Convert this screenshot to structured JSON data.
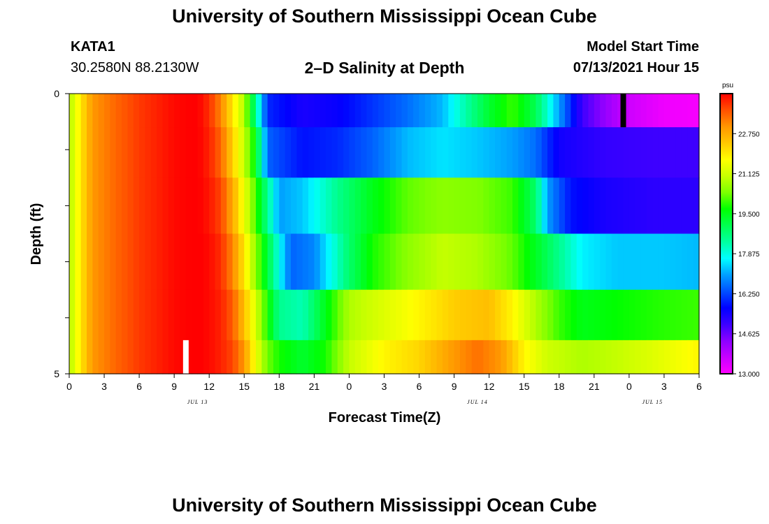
{
  "header": {
    "title": "University of Southern Mississippi Ocean Cube",
    "station": "KATA1",
    "coords": "30.2580N  88.2130W",
    "subtitle": "2–D Salinity at Depth",
    "model_start_label": "Model Start Time",
    "model_start_value": "07/13/2021 Hour 15"
  },
  "footer": {
    "title": "University of Southern Mississippi Ocean Cube"
  },
  "chart_data": {
    "type": "heatmap",
    "xlabel": "Forecast Time(Z)",
    "ylabel": "Depth (ft)",
    "x_tick_labels": [
      "0",
      "3",
      "6",
      "9",
      "12",
      "15",
      "18",
      "21",
      "0",
      "3",
      "6",
      "9",
      "12",
      "15",
      "18",
      "21",
      "0",
      "3",
      "6"
    ],
    "x_range_hours": [
      0,
      54
    ],
    "date_labels": [
      {
        "text": "JUL 13",
        "hour": 11
      },
      {
        "text": "JUL 14",
        "hour": 35
      },
      {
        "text": "JUL 15",
        "hour": 50
      }
    ],
    "y_tick_labels": [
      "0",
      "5"
    ],
    "y_range": [
      0,
      5
    ],
    "y_minor_ticks": [
      1,
      2,
      3,
      4
    ],
    "colorbar": {
      "unit": "psu",
      "labels": [
        "22.750",
        "21.125",
        "19.500",
        "17.875",
        "16.250",
        "14.625",
        "13.000"
      ],
      "min": 13.0,
      "max": 24.375,
      "colors": [
        "#ff00ff",
        "#c800ff",
        "#8c00ff",
        "#3c00ff",
        "#0000ff",
        "#0050ff",
        "#00a0ff",
        "#00ffff",
        "#00ffa0",
        "#00ff50",
        "#00ff00",
        "#7cff00",
        "#c8ff00",
        "#ffff00",
        "#ffc800",
        "#ff9600",
        "#ff5000",
        "#ff0000"
      ]
    },
    "row_depths": [
      0.25,
      1.0,
      2.0,
      3.0,
      4.0,
      4.75
    ],
    "series": [
      {
        "depth": 0.25,
        "points": [
          [
            0,
            20.8
          ],
          [
            1,
            22.0
          ],
          [
            2,
            23.0
          ],
          [
            4,
            23.5
          ],
          [
            6,
            23.9
          ],
          [
            9,
            24.3
          ],
          [
            11,
            24.4
          ],
          [
            12,
            24.0
          ],
          [
            13,
            23.2
          ],
          [
            14,
            22.0
          ],
          [
            15,
            20.8
          ],
          [
            16,
            18.5
          ],
          [
            17,
            16.0
          ],
          [
            20,
            15.4
          ],
          [
            23,
            15.6
          ],
          [
            26,
            16.1
          ],
          [
            29,
            16.6
          ],
          [
            32,
            17.2
          ],
          [
            34,
            18.3
          ],
          [
            36,
            19.3
          ],
          [
            38,
            20.0
          ],
          [
            40,
            19.0
          ],
          [
            42,
            17.0
          ],
          [
            44,
            15.0
          ],
          [
            46,
            14.2
          ],
          [
            48,
            13.6
          ],
          [
            51,
            13.2
          ],
          [
            54,
            13.1
          ]
        ]
      },
      {
        "depth": 1.0,
        "points": [
          [
            0,
            20.8
          ],
          [
            1,
            22.0
          ],
          [
            2,
            23.0
          ],
          [
            4,
            23.5
          ],
          [
            6,
            23.9
          ],
          [
            9,
            24.3
          ],
          [
            11,
            24.4
          ],
          [
            12,
            24.1
          ],
          [
            13,
            23.5
          ],
          [
            14,
            22.3
          ],
          [
            15,
            21.0
          ],
          [
            16,
            19.5
          ],
          [
            17,
            16.5
          ],
          [
            20,
            15.8
          ],
          [
            23,
            16.0
          ],
          [
            26,
            16.5
          ],
          [
            29,
            17.2
          ],
          [
            32,
            17.5
          ],
          [
            35,
            17.3
          ],
          [
            38,
            17.0
          ],
          [
            40,
            16.6
          ],
          [
            42,
            15.5
          ],
          [
            46,
            15.1
          ],
          [
            50,
            15.0
          ],
          [
            54,
            15.0
          ]
        ]
      },
      {
        "depth": 2.0,
        "points": [
          [
            0,
            20.8
          ],
          [
            1,
            22.0
          ],
          [
            2,
            23.0
          ],
          [
            4,
            23.5
          ],
          [
            6,
            23.9
          ],
          [
            9,
            24.3
          ],
          [
            11,
            24.4
          ],
          [
            12,
            24.2
          ],
          [
            13,
            23.8
          ],
          [
            14,
            22.8
          ],
          [
            15,
            21.5
          ],
          [
            16,
            20.0
          ],
          [
            17,
            18.5
          ],
          [
            18,
            17.0
          ],
          [
            20,
            17.3
          ],
          [
            23,
            18.5
          ],
          [
            26,
            19.5
          ],
          [
            29,
            20.2
          ],
          [
            32,
            20.5
          ],
          [
            35,
            20.4
          ],
          [
            38,
            20.0
          ],
          [
            40,
            18.8
          ],
          [
            41,
            17.0
          ],
          [
            43,
            15.8
          ],
          [
            46,
            15.4
          ],
          [
            50,
            15.2
          ],
          [
            54,
            15.2
          ]
        ]
      },
      {
        "depth": 3.0,
        "points": [
          [
            0,
            20.8
          ],
          [
            1,
            22.0
          ],
          [
            2,
            23.0
          ],
          [
            4,
            23.5
          ],
          [
            6,
            23.9
          ],
          [
            9,
            24.3
          ],
          [
            11,
            24.4
          ],
          [
            12,
            24.3
          ],
          [
            13,
            24.0
          ],
          [
            14,
            23.2
          ],
          [
            15,
            22.0
          ],
          [
            16,
            20.5
          ],
          [
            17,
            19.2
          ],
          [
            18,
            17.8
          ],
          [
            19,
            16.5
          ],
          [
            21,
            16.8
          ],
          [
            24,
            18.8
          ],
          [
            26,
            19.8
          ],
          [
            29,
            20.5
          ],
          [
            32,
            21.0
          ],
          [
            35,
            20.8
          ],
          [
            38,
            20.2
          ],
          [
            40,
            19.4
          ],
          [
            42,
            18.5
          ],
          [
            44,
            17.6
          ],
          [
            47,
            17.3
          ],
          [
            51,
            17.3
          ],
          [
            54,
            17.2
          ]
        ]
      },
      {
        "depth": 4.0,
        "points": [
          [
            0,
            20.8
          ],
          [
            1,
            22.0
          ],
          [
            2,
            23.0
          ],
          [
            4,
            23.5
          ],
          [
            6,
            23.9
          ],
          [
            9,
            24.3
          ],
          [
            11,
            24.4
          ],
          [
            12,
            24.3
          ],
          [
            13,
            24.1
          ],
          [
            14,
            23.6
          ],
          [
            15,
            22.5
          ],
          [
            16,
            21.2
          ],
          [
            17,
            19.8
          ],
          [
            18,
            18.5
          ],
          [
            20,
            18.2
          ],
          [
            22,
            19.5
          ],
          [
            24,
            20.8
          ],
          [
            27,
            21.3
          ],
          [
            30,
            21.8
          ],
          [
            33,
            22.3
          ],
          [
            36,
            22.5
          ],
          [
            38,
            21.8
          ],
          [
            40,
            20.8
          ],
          [
            42,
            20.0
          ],
          [
            44,
            19.5
          ],
          [
            47,
            19.7
          ],
          [
            51,
            19.9
          ],
          [
            54,
            20.0
          ]
        ]
      },
      {
        "depth": 4.75,
        "points": [
          [
            0,
            20.8
          ],
          [
            1,
            22.0
          ],
          [
            2,
            23.0
          ],
          [
            4,
            23.5
          ],
          [
            6,
            23.9
          ],
          [
            9,
            24.3
          ],
          [
            11,
            24.4
          ],
          [
            12,
            24.3
          ],
          [
            13,
            24.1
          ],
          [
            14,
            23.8
          ],
          [
            15,
            23.0
          ],
          [
            16,
            21.5
          ],
          [
            17,
            20.3
          ],
          [
            18,
            19.8
          ],
          [
            20,
            19.3
          ],
          [
            22,
            19.8
          ],
          [
            24,
            21.0
          ],
          [
            27,
            21.8
          ],
          [
            30,
            22.2
          ],
          [
            33,
            23.0
          ],
          [
            35,
            23.4
          ],
          [
            37,
            23.0
          ],
          [
            39,
            21.8
          ],
          [
            41,
            21.1
          ],
          [
            44,
            20.8
          ],
          [
            47,
            21.0
          ],
          [
            50,
            21.3
          ],
          [
            54,
            21.8
          ]
        ]
      }
    ],
    "markers": [
      {
        "type": "model-start",
        "color": "#ffffff",
        "hour": 10,
        "row": 5
      },
      {
        "type": "current-time",
        "color": "#000000",
        "hour": 47.5,
        "row": 0
      }
    ]
  }
}
